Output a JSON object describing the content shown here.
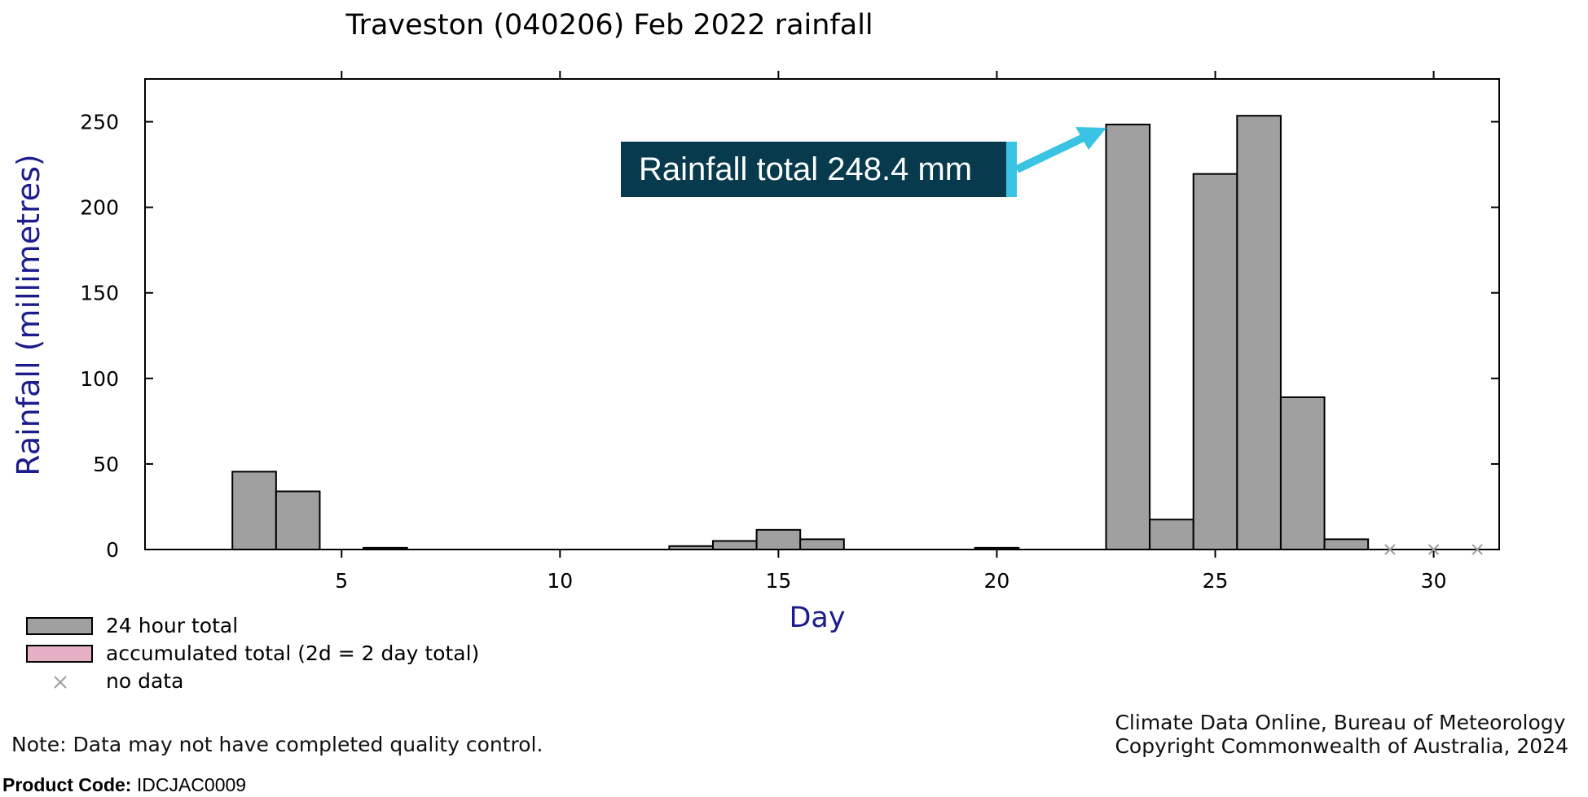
{
  "chart_data": {
    "type": "bar",
    "title": "Traveston (040206) Feb 2022 rainfall",
    "xlabel": "Day",
    "ylabel": "Rainfall (millimetres)",
    "xlim": [
      0.5,
      31.5
    ],
    "ylim": [
      0,
      275
    ],
    "x_ticks": [
      5,
      10,
      15,
      20,
      25,
      30
    ],
    "y_ticks": [
      0,
      50,
      100,
      150,
      200,
      250
    ],
    "series": [
      {
        "name": "24 hour total",
        "color": "#a0a0a0",
        "x": [
          1,
          2,
          3,
          4,
          5,
          6,
          7,
          8,
          9,
          10,
          11,
          12,
          13,
          14,
          15,
          16,
          17,
          18,
          19,
          20,
          21,
          22,
          23,
          24,
          25,
          26,
          27,
          28
        ],
        "values": [
          0,
          0,
          45.5,
          34,
          0,
          1,
          0,
          0,
          0,
          0,
          0,
          0,
          2,
          5,
          11.5,
          6,
          0,
          0,
          0,
          1,
          0,
          0,
          248.4,
          17.5,
          219.5,
          253.5,
          89,
          6
        ]
      }
    ],
    "no_data_days": [
      29,
      30,
      31
    ],
    "legend": {
      "placement": "bottom-left",
      "items": [
        {
          "label": "24 hour total",
          "color": "#a0a0a0",
          "kind": "box"
        },
        {
          "label": "accumulated total (2d = 2 day total)",
          "color": "#e6b0c4",
          "kind": "box"
        },
        {
          "label": "no data",
          "color": "#a0a0a0",
          "kind": "cross"
        }
      ]
    },
    "annotation": {
      "text": "Rainfall total 248.4 mm",
      "x": 23,
      "y": 248.4
    }
  },
  "footer": {
    "note": "Note: Data may not have completed quality control.",
    "credit_line1": "Climate Data Online, Bureau of Meteorology",
    "credit_line2": "Copyright Commonwealth of Australia, 2024",
    "product_label": "Product Code:",
    "product_code": "IDCJAC0009"
  },
  "colors": {
    "axis_label": "#1c1c8c",
    "callout_bg": "#073a4d",
    "callout_accent": "#3bc3e3"
  }
}
